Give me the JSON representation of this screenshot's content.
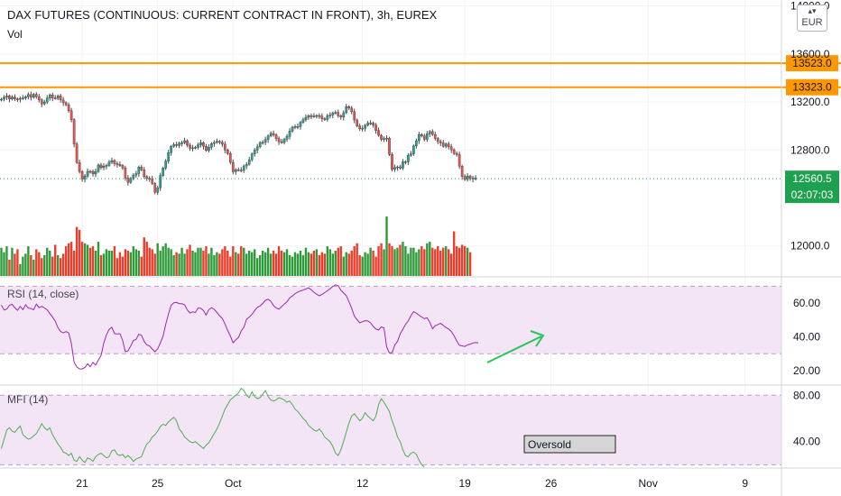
{
  "header": {
    "title": "DAX FUTURES (CONTINUOUS: CURRENT CONTRACT IN FRONT), 3h, EUREX",
    "volume_label": "Vol",
    "currency_button": "EUR"
  },
  "colors": {
    "up": "#26a69a",
    "down": "#ef5350",
    "volume_up": "#2e9a3a",
    "volume_down": "#ef3b2a",
    "level_line": "#ff9800",
    "current_price": "#1ea14e",
    "oscillator_line": "#9c27b0",
    "mfi_line": "#4caf50",
    "arrow": "#26c65a",
    "band_fill": "#f3e5f5"
  },
  "chart_data": [
    {
      "type": "candlestick",
      "pane": "price",
      "title": "DAX FUTURES (CONTINUOUS: CURRENT CONTRACT IN FRONT), 3h, EUREX",
      "y_ticks": [
        "14000.0",
        "13600.0",
        "13200.0",
        "12800.0",
        "12000.0"
      ],
      "y_tick_values": [
        14000,
        13600,
        13200,
        12800,
        12000
      ],
      "ylim": [
        11750,
        14050
      ],
      "x_ticks": [
        "21",
        "25",
        "Oct",
        "12",
        "19",
        "26",
        "Nov",
        "9"
      ],
      "x_tick_bars": [
        30,
        58,
        86,
        134,
        172,
        204,
        240,
        276
      ],
      "bar_count": 290,
      "close": [
        13223,
        13239,
        13250,
        13225,
        13240,
        13225,
        13223,
        13230,
        13234,
        13244,
        13262,
        13239,
        13264,
        13244,
        13218,
        13184,
        13200,
        13233,
        13259,
        13234,
        13231,
        13251,
        13217,
        13194,
        13177,
        13127,
        13053,
        12849,
        12696,
        12620,
        12557,
        12582,
        12622,
        12620,
        12600,
        12621,
        12675,
        12653,
        12665,
        12672,
        12699,
        12712,
        12686,
        12680,
        12671,
        12651,
        12566,
        12530,
        12563,
        12590,
        12603,
        12658,
        12634,
        12579,
        12563,
        12561,
        12521,
        12447,
        12485,
        12586,
        12649,
        12707,
        12778,
        12830,
        12845,
        12837,
        12857,
        12860,
        12877,
        12840,
        12815,
        12818,
        12822,
        12843,
        12861,
        12831,
        12796,
        12823,
        12854,
        12863,
        12871,
        12864,
        12848,
        12800,
        12770,
        12697,
        12619,
        12636,
        12633,
        12630,
        12667,
        12681,
        12719,
        12767,
        12799,
        12826,
        12862,
        12863,
        12887,
        12917,
        12938,
        12927,
        12895,
        12869,
        12863,
        12890,
        12914,
        12957,
        12990,
        12995,
        12996,
        13031,
        13052,
        13072,
        13086,
        13083,
        13080,
        13087,
        13082,
        13061,
        13055,
        13085,
        13091,
        13108,
        13113,
        13085,
        13074,
        13111,
        13161,
        13149,
        13120,
        13050,
        13001,
        12976,
        12981,
        13006,
        13024,
        13025,
        13008,
        12962,
        12922,
        12889,
        12895,
        12898,
        12762,
        12639,
        12654,
        12659,
        12649,
        12701,
        12702,
        12755,
        12768,
        12834,
        12877,
        12928,
        12917,
        12889,
        12935,
        12954,
        12929,
        12896,
        12870,
        12859,
        12831,
        12850,
        12826,
        12802,
        12770,
        12762,
        12665,
        12580,
        12554,
        12582,
        12566,
        12558,
        12566
      ]
    },
    {
      "type": "bar",
      "pane": "volume",
      "series_name": "Vol",
      "values": [
        38,
        32,
        40,
        22,
        38,
        30,
        36,
        16,
        26,
        30,
        40,
        28,
        22,
        36,
        32,
        24,
        28,
        38,
        34,
        26,
        42,
        28,
        24,
        30,
        40,
        44,
        46,
        34,
        66,
        62,
        46,
        44,
        42,
        38,
        40,
        34,
        46,
        28,
        30,
        36,
        34,
        34,
        40,
        24,
        32,
        26,
        36,
        34,
        32,
        40,
        36,
        34,
        26,
        52,
        46,
        38,
        36,
        30,
        44,
        34,
        40,
        44,
        38,
        36,
        28,
        32,
        30,
        38,
        30,
        36,
        42,
        34,
        32,
        38,
        38,
        34,
        40,
        30,
        38,
        28,
        32,
        30,
        36,
        40,
        34,
        26,
        40,
        32,
        30,
        40,
        38,
        30,
        34,
        32,
        36,
        24,
        28,
        34,
        32,
        38,
        30,
        34,
        30,
        40,
        34,
        32,
        36,
        28,
        26,
        32,
        30,
        34,
        28,
        38,
        32,
        30,
        34,
        36,
        28,
        32,
        30,
        40,
        36,
        30,
        34,
        38,
        40,
        26,
        32,
        30,
        34,
        40,
        44,
        28,
        26,
        32,
        30,
        38,
        34,
        26,
        40,
        44,
        36,
        80,
        44,
        40,
        36,
        38,
        42,
        46,
        40,
        30,
        38,
        38,
        32,
        36,
        40,
        36,
        44,
        46,
        38,
        36,
        40,
        34,
        38,
        40,
        36,
        30,
        60,
        40,
        38,
        42,
        40,
        38,
        32
      ]
    },
    {
      "type": "line",
      "pane": "RSI",
      "label": "RSI (14, close)",
      "y_ticks": [
        "60.00",
        "40.00",
        "20.00"
      ],
      "y_tick_values": [
        60,
        40,
        20
      ],
      "ylim": [
        12,
        75
      ],
      "band": [
        30,
        70
      ],
      "values": [
        58.9,
        55.9,
        56.5,
        58.7,
        59.3,
        57.2,
        55.7,
        58.0,
        56.1,
        59.0,
        57.0,
        56.8,
        56.0,
        59.4,
        57.3,
        58.1,
        57.1,
        56.0,
        53.8,
        51.7,
        49.3,
        45.5,
        43.2,
        42.4,
        43.1,
        42.4,
        36.1,
        25.1,
        22.2,
        21.1,
        21.0,
        21.9,
        24.1,
        22.3,
        24.9,
        23.3,
        26.2,
        29.0,
        36.4,
        41.2,
        44.4,
        45.7,
        41.9,
        41.8,
        41.9,
        37.9,
        31.2,
        31.7,
        34.6,
        37.9,
        38.5,
        41.6,
        40.9,
        37.3,
        35.2,
        34.7,
        32.8,
        31.2,
        32.9,
        36.4,
        40.4,
        47.5,
        53.3,
        58.6,
        60.2,
        60.4,
        59.7,
        59.6,
        59.0,
        56.0,
        54.2,
        54.8,
        54.4,
        57.1,
        56.9,
        55.6,
        52.9,
        56.1,
        57.3,
        56.3,
        54.5,
        52.4,
        50.9,
        47.6,
        43.8,
        40.5,
        36.5,
        38.2,
        39.7,
        43.5,
        45.7,
        50.4,
        51.7,
        53.3,
        55.6,
        57.5,
        58.3,
        59.8,
        61.6,
        62.3,
        61.1,
        58.5,
        57.1,
        56.4,
        57.9,
        59.4,
        60.8,
        63.0,
        64.2,
        65.6,
        66.5,
        67.2,
        67.7,
        68.3,
        69.0,
        67.9,
        66.4,
        65.3,
        64.3,
        65.1,
        66.2,
        67.3,
        68.5,
        69.9,
        70.8,
        70.3,
        67.6,
        66.0,
        64.5,
        60.8,
        57.0,
        52.3,
        50.2,
        48.3,
        49.0,
        49.6,
        49.4,
        48.3,
        46.2,
        44.6,
        44.1,
        45.9,
        45.3,
        34.1,
        30.5,
        30.5,
        35.2,
        37.3,
        41.8,
        44.4,
        47.4,
        49.4,
        52.6,
        55.0,
        54.0,
        52.8,
        51.8,
        50.8,
        51.3,
        48.7,
        44.8,
        46.6,
        47.3,
        48.0,
        46.8,
        45.6,
        44.7,
        43.2,
        40.6,
        37.6,
        35.0,
        34.7,
        34.3,
        35.2,
        35.7,
        36.4,
        36.7,
        36.4
      ]
    },
    {
      "type": "line",
      "pane": "MFI",
      "label": "MFI (14)",
      "y_ticks": [
        "80.00",
        "40.00"
      ],
      "y_tick_values": [
        80,
        40
      ],
      "ylim": [
        18,
        88
      ],
      "band": [
        20,
        80
      ],
      "values": [
        34.0,
        42.0,
        50.0,
        52.0,
        49.0,
        48.0,
        51.0,
        53.5,
        46.0,
        44.0,
        42.0,
        43.0,
        45.0,
        47.0,
        51.0,
        55.5,
        52.0,
        50.0,
        52.0,
        46.0,
        42.0,
        38.0,
        35.0,
        31.0,
        30.0,
        28.0,
        30.0,
        24.0,
        23.0,
        27.0,
        24.0,
        22.0,
        26.0,
        25.0,
        23.0,
        27.0,
        29.0,
        30.0,
        28.0,
        26.0,
        27.0,
        32.0,
        33.0,
        29.0,
        28.0,
        29.0,
        26.0,
        28.0,
        26.0,
        23.0,
        25.0,
        26.0,
        27.0,
        33.0,
        38.0,
        40.0,
        44.0,
        46.0,
        49.0,
        53.0,
        55.0,
        54.0,
        57.0,
        59.0,
        61.0,
        58.0,
        51.0,
        48.0,
        44.0,
        42.0,
        40.0,
        39.0,
        40.0,
        38.0,
        36.0,
        34.0,
        37.0,
        39.0,
        43.0,
        47.0,
        51.0,
        56.0,
        62.0,
        68.0,
        72.0,
        76.0,
        78.0,
        80.0,
        82.0,
        86.0,
        84.0,
        80.0,
        78.0,
        83.0,
        79.0,
        77.0,
        78.0,
        81.0,
        84.0,
        79.0,
        76.0,
        75.0,
        76.0,
        78.0,
        77.0,
        76.0,
        74.0,
        75.0,
        72.0,
        68.0,
        66.0,
        63.0,
        60.0,
        58.0,
        54.0,
        52.0,
        50.0,
        49.0,
        51.0,
        48.0,
        44.0,
        42.0,
        40.0,
        36.0,
        30.0,
        28.0,
        33.0,
        40.0,
        48.0,
        56.0,
        62.0,
        64.0,
        61.0,
        58.0,
        60.0,
        65.0,
        62.0,
        60.0,
        58.0,
        62.0,
        72.0,
        77.0,
        74.0,
        70.0,
        66.0,
        58.0,
        52.0,
        44.0,
        40.0,
        33.0,
        28.0,
        27.0,
        30.0,
        31.0,
        29.0,
        24.0,
        20.0,
        18.0
      ]
    }
  ],
  "price_levels": [
    {
      "price": 13523.0,
      "label": "13523.0"
    },
    {
      "price": 13323.0,
      "label": "13323.0"
    }
  ],
  "current_price": {
    "value": 12560.5,
    "label": "12560.5",
    "countdown": "02:07:03"
  },
  "annotations": {
    "oversold_label": "Oversold"
  }
}
